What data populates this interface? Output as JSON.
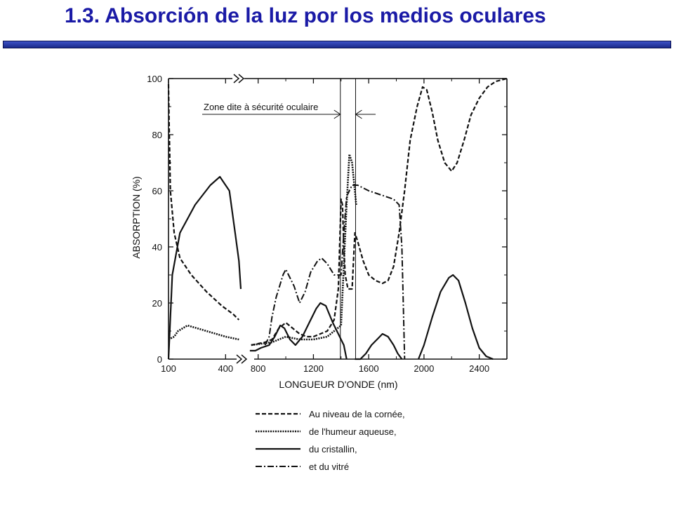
{
  "slide": {
    "title": "1.3. Absorción de la luz por los medios oculares"
  },
  "colors": {
    "title": "#1a1aa6",
    "bar": "#2a3ba8",
    "ink": "#111111"
  },
  "chart_data": {
    "type": "line",
    "title": "",
    "xlabel": "LONGUEUR D'ONDE (nm)",
    "ylabel": "ABSORPTION (%)",
    "ylim": [
      0,
      100
    ],
    "yticks": [
      0,
      20,
      40,
      60,
      80,
      100
    ],
    "x_axis_note": "broken axis: segment 100–500 nm, segment 700–2600 nm",
    "xticks_left": [
      100,
      400
    ],
    "xticks_right": [
      800,
      1200,
      1600,
      2000,
      2400
    ],
    "grid": false,
    "legend_position": "below",
    "annotation": {
      "text": "Zone dite à sécurité oculaire",
      "x_range": [
        1400,
        1500
      ]
    },
    "series": [
      {
        "name": "Au niveau de la cornée,",
        "dash": "dashed",
        "points": [
          [
            100,
            98
          ],
          [
            103,
            85
          ],
          [
            110,
            60
          ],
          [
            130,
            45
          ],
          [
            160,
            36
          ],
          [
            220,
            30
          ],
          [
            300,
            24
          ],
          [
            380,
            19
          ],
          [
            440,
            16
          ],
          [
            470,
            14
          ],
          [
            null,
            null
          ],
          [
            750,
            5
          ],
          [
            850,
            6
          ],
          [
            900,
            7
          ],
          [
            950,
            11
          ],
          [
            1000,
            13
          ],
          [
            1050,
            11
          ],
          [
            1100,
            9
          ],
          [
            1150,
            8
          ],
          [
            1200,
            8
          ],
          [
            1250,
            9
          ],
          [
            1300,
            10
          ],
          [
            1350,
            14
          ],
          [
            1380,
            25
          ],
          [
            1400,
            57
          ],
          [
            1410,
            55
          ],
          [
            1420,
            40
          ],
          [
            1430,
            30
          ],
          [
            1450,
            25
          ],
          [
            1480,
            25
          ],
          [
            1500,
            45
          ],
          [
            1520,
            42
          ],
          [
            1560,
            35
          ],
          [
            1600,
            30
          ],
          [
            1650,
            28
          ],
          [
            1700,
            27
          ],
          [
            1740,
            28
          ],
          [
            1780,
            33
          ],
          [
            1820,
            45
          ],
          [
            1860,
            60
          ],
          [
            1900,
            78
          ],
          [
            1950,
            90
          ],
          [
            1990,
            97
          ],
          [
            2020,
            96
          ],
          [
            2060,
            88
          ],
          [
            2100,
            78
          ],
          [
            2150,
            70
          ],
          [
            2200,
            67
          ],
          [
            2240,
            70
          ],
          [
            2290,
            78
          ],
          [
            2340,
            87
          ],
          [
            2400,
            93
          ],
          [
            2460,
            97
          ],
          [
            2520,
            99
          ],
          [
            2600,
            100
          ]
        ]
      },
      {
        "name": "de l'humeur aqueuse,",
        "dash": "dotted",
        "points": [
          [
            100,
            7
          ],
          [
            130,
            8
          ],
          [
            150,
            10
          ],
          [
            200,
            12
          ],
          [
            250,
            11
          ],
          [
            300,
            10
          ],
          [
            400,
            8
          ],
          [
            470,
            7
          ],
          [
            null,
            null
          ],
          [
            750,
            5
          ],
          [
            900,
            6
          ],
          [
            1000,
            8
          ],
          [
            1100,
            7
          ],
          [
            1200,
            7
          ],
          [
            1300,
            8
          ],
          [
            1400,
            12
          ],
          [
            1440,
            55
          ],
          [
            1460,
            73
          ],
          [
            1480,
            70
          ],
          [
            1510,
            55
          ]
        ]
      },
      {
        "name": "du cristallin,",
        "dash": "solid",
        "points": [
          [
            100,
            0
          ],
          [
            120,
            30
          ],
          [
            160,
            45
          ],
          [
            240,
            55
          ],
          [
            320,
            62
          ],
          [
            370,
            65
          ],
          [
            420,
            60
          ],
          [
            450,
            45
          ],
          [
            470,
            35
          ],
          [
            480,
            25
          ],
          [
            null,
            null
          ],
          [
            740,
            3
          ],
          [
            780,
            3
          ],
          [
            820,
            4
          ],
          [
            880,
            5
          ],
          [
            920,
            8
          ],
          [
            960,
            12
          ],
          [
            990,
            11
          ],
          [
            1030,
            7
          ],
          [
            1070,
            5
          ],
          [
            1120,
            8
          ],
          [
            1170,
            13
          ],
          [
            1220,
            18
          ],
          [
            1250,
            20
          ],
          [
            1290,
            19
          ],
          [
            1340,
            13
          ],
          [
            1390,
            8
          ],
          [
            1420,
            5
          ],
          [
            1440,
            0
          ],
          [
            null,
            null
          ],
          [
            1500,
            0
          ],
          [
            1540,
            0
          ],
          [
            1580,
            2
          ],
          [
            1620,
            5
          ],
          [
            1660,
            7
          ],
          [
            1700,
            9
          ],
          [
            1740,
            8
          ],
          [
            1780,
            5
          ],
          [
            1810,
            2
          ],
          [
            1840,
            0
          ],
          [
            null,
            null
          ],
          [
            1960,
            0
          ],
          [
            2000,
            5
          ],
          [
            2060,
            15
          ],
          [
            2120,
            24
          ],
          [
            2180,
            29
          ],
          [
            2210,
            30
          ],
          [
            2250,
            28
          ],
          [
            2300,
            20
          ],
          [
            2350,
            11
          ],
          [
            2400,
            4
          ],
          [
            2450,
            1
          ],
          [
            2500,
            0
          ]
        ]
      },
      {
        "name": "et du vitré",
        "dash": "dashdot",
        "points": [
          [
            850,
            5
          ],
          [
            880,
            8
          ],
          [
            900,
            15
          ],
          [
            930,
            22
          ],
          [
            980,
            30
          ],
          [
            1000,
            32
          ],
          [
            1020,
            30
          ],
          [
            1060,
            26
          ],
          [
            1100,
            20
          ],
          [
            1140,
            24
          ],
          [
            1180,
            31
          ],
          [
            1230,
            35
          ],
          [
            1260,
            36
          ],
          [
            1300,
            34
          ],
          [
            1350,
            30
          ],
          [
            1400,
            30
          ],
          [
            1420,
            45
          ],
          [
            1440,
            58
          ],
          [
            1460,
            60
          ],
          [
            1480,
            62
          ],
          [
            1520,
            62
          ],
          [
            1560,
            61
          ],
          [
            1600,
            60
          ],
          [
            1660,
            59
          ],
          [
            1720,
            58
          ],
          [
            1780,
            57
          ],
          [
            1820,
            55
          ],
          [
            1840,
            40
          ],
          [
            1850,
            20
          ],
          [
            1860,
            0
          ]
        ]
      }
    ]
  }
}
